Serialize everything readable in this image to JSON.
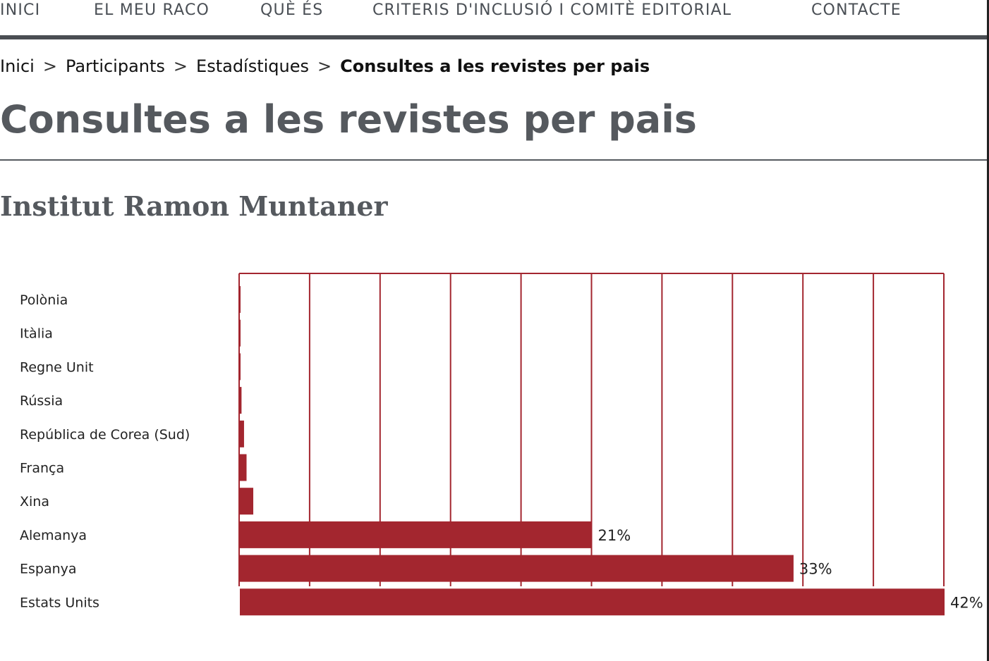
{
  "nav": {
    "items": [
      {
        "label": "INICI"
      },
      {
        "label": "EL MEU RACO"
      },
      {
        "label": "QUÈ ÉS"
      },
      {
        "label": "CRITERIS D'INCLUSIÓ I COMITÈ EDITORIAL"
      },
      {
        "label": "CONTACTE"
      }
    ]
  },
  "breadcrumb": {
    "items": [
      "Inici",
      "Participants",
      "Estadístiques"
    ],
    "separator": ">",
    "current": "Consultes a les revistes per pais"
  },
  "page_title": "Consultes a les revistes per pais",
  "section_heading": "Institut Ramon Muntaner",
  "colors": {
    "bar": "#a3262f",
    "grid": "#a3262f",
    "nav_rule": "#4a4e53",
    "title": "#55595e"
  },
  "chart_data": {
    "type": "bar",
    "orientation": "horizontal",
    "categories": [
      "Polònia",
      "Itàlia",
      "Regne Unit",
      "Rússia",
      "República de Corea (Sud)",
      "França",
      "Xina",
      "Alemanya",
      "Espanya",
      "Estats Units"
    ],
    "values": [
      0.02,
      0.03,
      0.04,
      0.1,
      0.25,
      0.4,
      0.8,
      21,
      33,
      42
    ],
    "data_labels": [
      "",
      "",
      "",
      "",
      "",
      "",
      "",
      "21%",
      "33%",
      "42%"
    ],
    "xlim": [
      0,
      42
    ],
    "grid": true,
    "title": "",
    "xlabel": "",
    "ylabel": ""
  }
}
